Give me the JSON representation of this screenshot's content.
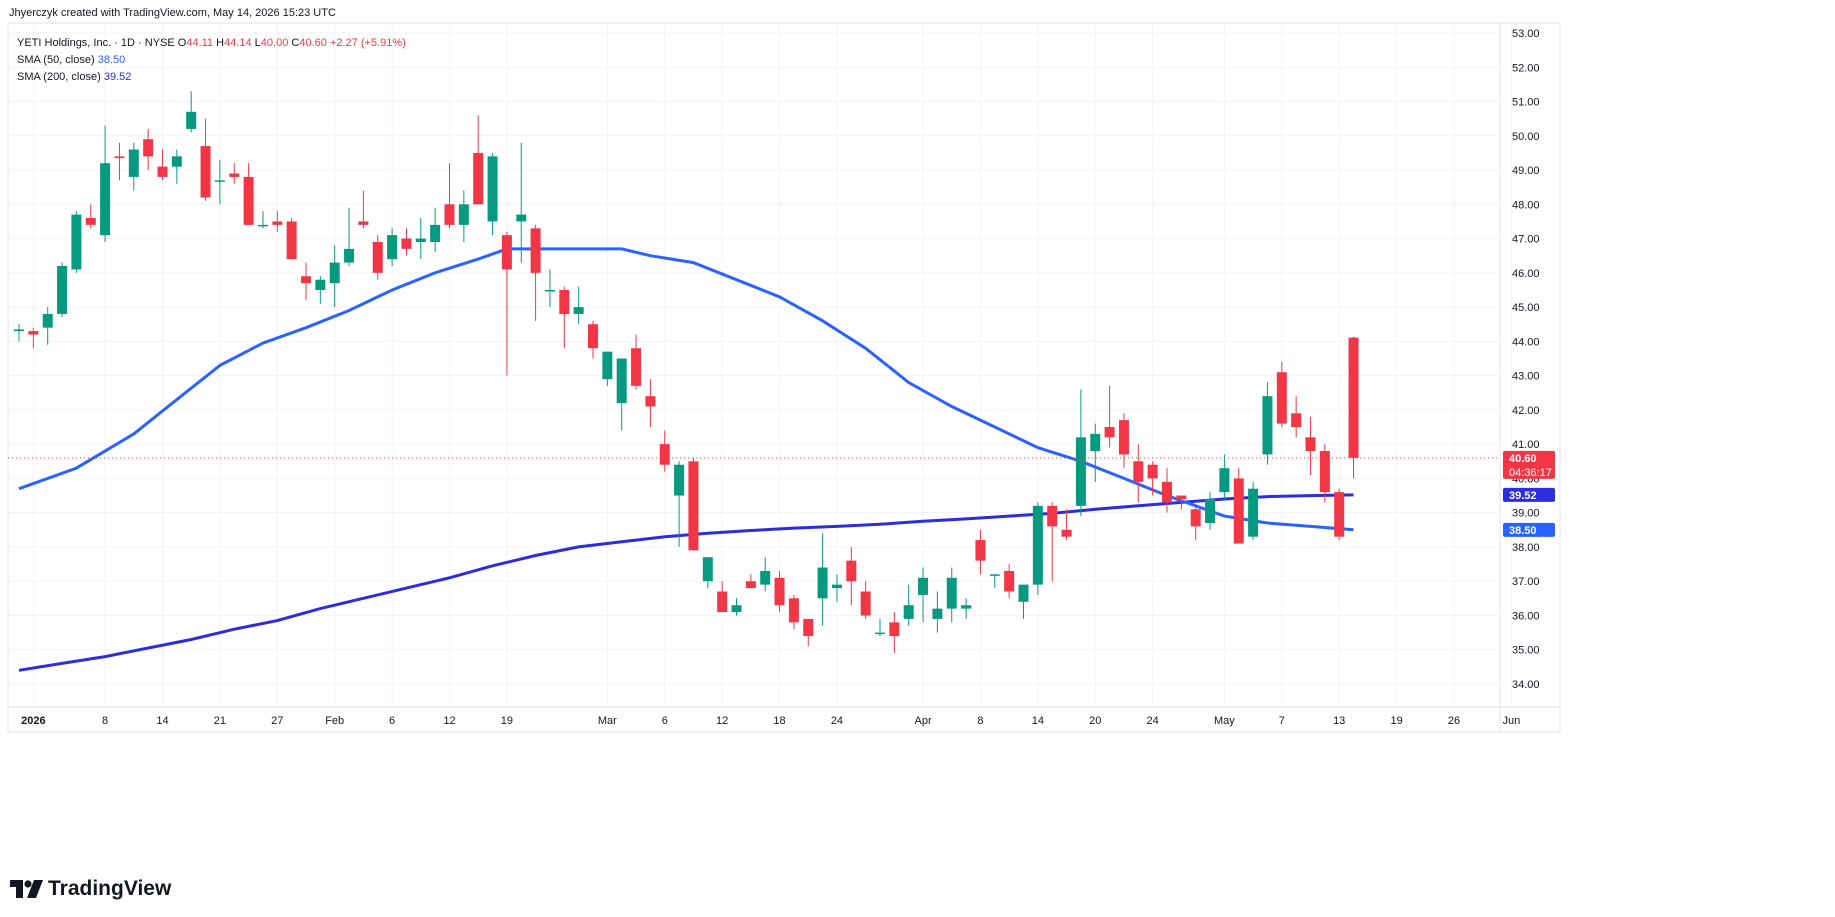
{
  "header": {
    "credit": "Jhyerczyk created with TradingView.com, May 14, 2026 15:23 UTC"
  },
  "legend": {
    "symbol": "YETI Holdings, Inc. · 1D · NYSE",
    "open_label": "O",
    "open": "44.11",
    "high_label": "H",
    "high": "44.14",
    "low_label": "L",
    "low": "40.00",
    "close_label": "C",
    "close": "40.60",
    "change": "+2.27 (+5.91%)",
    "sma50_label": "SMA (50, close)",
    "sma50_value": "38.50",
    "sma200_label": "SMA (200, close)",
    "sma200_value": "39.52"
  },
  "footer": {
    "brand": "TradingView"
  },
  "colors": {
    "up": "#089981",
    "down": "#f23645",
    "sma50": "#2962ff",
    "sma200": "#2c2ce0",
    "grid": "#f0f3fa",
    "axis_text": "#131722"
  },
  "chart_data": {
    "type": "candlestick",
    "symbol": "YETI",
    "exchange": "NYSE",
    "interval": "1D",
    "ylim": [
      33.5,
      53.3
    ],
    "yticks": [
      "53.00",
      "52.00",
      "51.00",
      "50.00",
      "49.00",
      "48.00",
      "47.00",
      "46.00",
      "45.00",
      "44.00",
      "43.00",
      "42.00",
      "41.00",
      "40.00",
      "39.00",
      "38.00",
      "37.00",
      "36.00",
      "35.00",
      "34.00"
    ],
    "x_ticks": [
      {
        "label": "2026",
        "i": 1
      },
      {
        "label": "8",
        "i": 6
      },
      {
        "label": "14",
        "i": 10
      },
      {
        "label": "21",
        "i": 14
      },
      {
        "label": "27",
        "i": 18
      },
      {
        "label": "Feb",
        "i": 22
      },
      {
        "label": "6",
        "i": 26
      },
      {
        "label": "12",
        "i": 30
      },
      {
        "label": "19",
        "i": 34
      },
      {
        "label": "Mar",
        "i": 41
      },
      {
        "label": "6",
        "i": 45
      },
      {
        "label": "12",
        "i": 49
      },
      {
        "label": "18",
        "i": 53
      },
      {
        "label": "24",
        "i": 57
      },
      {
        "label": "Apr",
        "i": 63
      },
      {
        "label": "8",
        "i": 67
      },
      {
        "label": "14",
        "i": 71
      },
      {
        "label": "20",
        "i": 75
      },
      {
        "label": "24",
        "i": 79
      },
      {
        "label": "May",
        "i": 84
      },
      {
        "label": "7",
        "i": 88
      },
      {
        "label": "13",
        "i": 92
      },
      {
        "label": "19",
        "i": 96
      },
      {
        "label": "26",
        "i": 100
      },
      {
        "label": "Jun",
        "i": 104
      }
    ],
    "candles": [
      {
        "o": 44.3,
        "h": 44.5,
        "l": 44.0,
        "c": 44.35
      },
      {
        "o": 44.3,
        "h": 44.4,
        "l": 43.8,
        "c": 44.2
      },
      {
        "o": 44.4,
        "h": 45.0,
        "l": 43.9,
        "c": 44.8
      },
      {
        "o": 44.8,
        "h": 46.3,
        "l": 44.7,
        "c": 46.2
      },
      {
        "o": 46.1,
        "h": 47.8,
        "l": 46.0,
        "c": 47.7
      },
      {
        "o": 47.6,
        "h": 48.0,
        "l": 47.3,
        "c": 47.4
      },
      {
        "o": 47.1,
        "h": 50.3,
        "l": 46.9,
        "c": 49.2
      },
      {
        "o": 49.4,
        "h": 49.8,
        "l": 48.7,
        "c": 49.35
      },
      {
        "o": 48.8,
        "h": 49.8,
        "l": 48.4,
        "c": 49.6
      },
      {
        "o": 49.9,
        "h": 50.2,
        "l": 49.0,
        "c": 49.4
      },
      {
        "o": 49.1,
        "h": 49.6,
        "l": 48.7,
        "c": 48.8
      },
      {
        "o": 49.1,
        "h": 49.6,
        "l": 48.6,
        "c": 49.4
      },
      {
        "o": 50.2,
        "h": 51.3,
        "l": 50.1,
        "c": 50.7
      },
      {
        "o": 49.7,
        "h": 50.5,
        "l": 48.1,
        "c": 48.2
      },
      {
        "o": 48.7,
        "h": 49.3,
        "l": 48.0,
        "c": 48.7
      },
      {
        "o": 48.9,
        "h": 49.2,
        "l": 48.6,
        "c": 48.8
      },
      {
        "o": 48.8,
        "h": 49.2,
        "l": 47.4,
        "c": 47.4
      },
      {
        "o": 47.4,
        "h": 47.8,
        "l": 47.3,
        "c": 47.4
      },
      {
        "o": 47.5,
        "h": 47.8,
        "l": 47.2,
        "c": 47.4
      },
      {
        "o": 47.5,
        "h": 47.6,
        "l": 46.4,
        "c": 46.4
      },
      {
        "o": 45.9,
        "h": 46.3,
        "l": 45.2,
        "c": 45.7
      },
      {
        "o": 45.5,
        "h": 45.9,
        "l": 45.1,
        "c": 45.8
      },
      {
        "o": 45.7,
        "h": 46.8,
        "l": 45.0,
        "c": 46.3
      },
      {
        "o": 46.3,
        "h": 47.9,
        "l": 46.2,
        "c": 46.7
      },
      {
        "o": 47.5,
        "h": 48.4,
        "l": 47.3,
        "c": 47.4
      },
      {
        "o": 46.9,
        "h": 47.1,
        "l": 45.8,
        "c": 46.0
      },
      {
        "o": 46.4,
        "h": 47.3,
        "l": 46.2,
        "c": 47.1
      },
      {
        "o": 47.0,
        "h": 47.3,
        "l": 46.5,
        "c": 46.7
      },
      {
        "o": 46.9,
        "h": 47.6,
        "l": 46.4,
        "c": 47.0
      },
      {
        "o": 46.9,
        "h": 47.9,
        "l": 46.6,
        "c": 47.4
      },
      {
        "o": 48.0,
        "h": 49.2,
        "l": 47.3,
        "c": 47.4
      },
      {
        "o": 47.4,
        "h": 48.4,
        "l": 46.9,
        "c": 48.0
      },
      {
        "o": 49.5,
        "h": 50.6,
        "l": 48.1,
        "c": 48.0
      },
      {
        "o": 47.5,
        "h": 49.5,
        "l": 47.1,
        "c": 49.4
      },
      {
        "o": 47.1,
        "h": 47.2,
        "l": 43.0,
        "c": 46.1
      },
      {
        "o": 47.5,
        "h": 49.8,
        "l": 46.3,
        "c": 47.7
      },
      {
        "o": 47.3,
        "h": 47.4,
        "l": 44.6,
        "c": 46.0
      },
      {
        "o": 45.5,
        "h": 46.1,
        "l": 45.0,
        "c": 45.5
      },
      {
        "o": 45.5,
        "h": 45.6,
        "l": 43.8,
        "c": 44.8
      },
      {
        "o": 44.8,
        "h": 45.6,
        "l": 44.5,
        "c": 45.0
      },
      {
        "o": 44.5,
        "h": 44.6,
        "l": 43.5,
        "c": 43.8
      },
      {
        "o": 42.9,
        "h": 43.7,
        "l": 42.7,
        "c": 43.7
      },
      {
        "o": 42.2,
        "h": 43.5,
        "l": 41.4,
        "c": 43.5
      },
      {
        "o": 43.8,
        "h": 44.2,
        "l": 42.6,
        "c": 42.7
      },
      {
        "o": 42.4,
        "h": 42.9,
        "l": 41.5,
        "c": 42.1
      },
      {
        "o": 41.0,
        "h": 41.4,
        "l": 40.2,
        "c": 40.4
      },
      {
        "o": 39.5,
        "h": 40.5,
        "l": 38.0,
        "c": 40.4
      },
      {
        "o": 40.5,
        "h": 40.6,
        "l": 37.9,
        "c": 37.9
      },
      {
        "o": 37.0,
        "h": 37.7,
        "l": 36.8,
        "c": 37.7
      },
      {
        "o": 36.7,
        "h": 37.0,
        "l": 36.1,
        "c": 36.1
      },
      {
        "o": 36.1,
        "h": 36.5,
        "l": 36.0,
        "c": 36.3
      },
      {
        "o": 37.0,
        "h": 37.2,
        "l": 36.8,
        "c": 36.8
      },
      {
        "o": 36.9,
        "h": 37.7,
        "l": 36.7,
        "c": 37.3
      },
      {
        "o": 37.1,
        "h": 37.3,
        "l": 36.1,
        "c": 36.3
      },
      {
        "o": 36.5,
        "h": 36.6,
        "l": 35.6,
        "c": 35.8
      },
      {
        "o": 35.9,
        "h": 35.9,
        "l": 35.1,
        "c": 35.4
      },
      {
        "o": 36.5,
        "h": 38.4,
        "l": 35.7,
        "c": 37.4
      },
      {
        "o": 36.8,
        "h": 37.2,
        "l": 36.4,
        "c": 36.9
      },
      {
        "o": 37.6,
        "h": 38.0,
        "l": 36.3,
        "c": 37.0
      },
      {
        "o": 36.7,
        "h": 37.0,
        "l": 35.9,
        "c": 36.0
      },
      {
        "o": 35.5,
        "h": 35.9,
        "l": 35.4,
        "c": 35.5
      },
      {
        "o": 35.8,
        "h": 36.1,
        "l": 34.9,
        "c": 35.4
      },
      {
        "o": 35.9,
        "h": 36.9,
        "l": 35.7,
        "c": 36.3
      },
      {
        "o": 36.6,
        "h": 37.4,
        "l": 35.8,
        "c": 37.1
      },
      {
        "o": 35.9,
        "h": 36.7,
        "l": 35.5,
        "c": 36.2
      },
      {
        "o": 36.2,
        "h": 37.4,
        "l": 35.8,
        "c": 37.1
      },
      {
        "o": 36.2,
        "h": 36.5,
        "l": 35.9,
        "c": 36.3
      },
      {
        "o": 38.2,
        "h": 38.5,
        "l": 37.2,
        "c": 37.6
      },
      {
        "o": 37.2,
        "h": 37.2,
        "l": 36.8,
        "c": 37.2
      },
      {
        "o": 37.3,
        "h": 37.5,
        "l": 36.5,
        "c": 36.7
      },
      {
        "o": 36.4,
        "h": 36.9,
        "l": 35.9,
        "c": 36.9
      },
      {
        "o": 36.9,
        "h": 39.3,
        "l": 36.6,
        "c": 39.2
      },
      {
        "o": 39.2,
        "h": 39.3,
        "l": 37.0,
        "c": 38.6
      },
      {
        "o": 38.5,
        "h": 39.1,
        "l": 38.2,
        "c": 38.3
      },
      {
        "o": 39.2,
        "h": 42.6,
        "l": 38.9,
        "c": 41.2
      },
      {
        "o": 40.8,
        "h": 41.6,
        "l": 39.9,
        "c": 41.3
      },
      {
        "o": 41.5,
        "h": 42.7,
        "l": 40.9,
        "c": 41.2
      },
      {
        "o": 41.7,
        "h": 41.9,
        "l": 40.3,
        "c": 40.7
      },
      {
        "o": 40.5,
        "h": 41.0,
        "l": 39.3,
        "c": 39.9
      },
      {
        "o": 40.4,
        "h": 40.5,
        "l": 39.5,
        "c": 40.0
      },
      {
        "o": 39.9,
        "h": 40.3,
        "l": 39.0,
        "c": 39.3
      },
      {
        "o": 39.5,
        "h": 39.5,
        "l": 39.1,
        "c": 39.4
      },
      {
        "o": 39.1,
        "h": 39.2,
        "l": 38.2,
        "c": 38.6
      },
      {
        "o": 38.7,
        "h": 39.6,
        "l": 38.5,
        "c": 39.4
      },
      {
        "o": 39.6,
        "h": 40.7,
        "l": 39.4,
        "c": 40.3
      },
      {
        "o": 40.0,
        "h": 40.3,
        "l": 38.1,
        "c": 38.1
      },
      {
        "o": 38.3,
        "h": 39.9,
        "l": 38.2,
        "c": 39.7
      },
      {
        "o": 40.7,
        "h": 42.8,
        "l": 40.4,
        "c": 42.4
      },
      {
        "o": 43.1,
        "h": 43.4,
        "l": 41.5,
        "c": 41.6
      },
      {
        "o": 41.9,
        "h": 42.4,
        "l": 41.2,
        "c": 41.5
      },
      {
        "o": 41.2,
        "h": 41.8,
        "l": 40.1,
        "c": 40.8
      },
      {
        "o": 40.8,
        "h": 41.0,
        "l": 39.3,
        "c": 39.6
      },
      {
        "o": 39.6,
        "h": 39.7,
        "l": 38.2,
        "c": 38.3
      },
      {
        "o": 44.11,
        "h": 44.14,
        "l": 40.0,
        "c": 40.6
      }
    ],
    "sma50": [
      [
        0,
        39.7
      ],
      [
        4,
        40.3
      ],
      [
        8,
        41.3
      ],
      [
        11,
        42.3
      ],
      [
        14,
        43.3
      ],
      [
        17,
        43.95
      ],
      [
        20,
        44.4
      ],
      [
        23,
        44.9
      ],
      [
        26,
        45.5
      ],
      [
        29,
        46.0
      ],
      [
        32,
        46.4
      ],
      [
        34,
        46.7
      ],
      [
        37,
        46.7
      ],
      [
        40,
        46.7
      ],
      [
        42,
        46.7
      ],
      [
        44,
        46.5
      ],
      [
        47,
        46.3
      ],
      [
        50,
        45.8
      ],
      [
        53,
        45.3
      ],
      [
        56,
        44.6
      ],
      [
        59,
        43.8
      ],
      [
        62,
        42.8
      ],
      [
        65,
        42.1
      ],
      [
        68,
        41.5
      ],
      [
        71,
        40.9
      ],
      [
        74,
        40.5
      ],
      [
        77,
        40.0
      ],
      [
        80,
        39.5
      ],
      [
        84,
        38.9
      ],
      [
        87,
        38.7
      ],
      [
        90,
        38.6
      ],
      [
        93,
        38.5
      ]
    ],
    "sma200": [
      [
        0,
        34.4
      ],
      [
        3,
        34.6
      ],
      [
        6,
        34.8
      ],
      [
        9,
        35.05
      ],
      [
        12,
        35.3
      ],
      [
        15,
        35.6
      ],
      [
        18,
        35.85
      ],
      [
        21,
        36.2
      ],
      [
        24,
        36.5
      ],
      [
        27,
        36.8
      ],
      [
        30,
        37.1
      ],
      [
        33,
        37.45
      ],
      [
        36,
        37.75
      ],
      [
        39,
        38.0
      ],
      [
        42,
        38.15
      ],
      [
        45,
        38.3
      ],
      [
        48,
        38.4
      ],
      [
        51,
        38.48
      ],
      [
        54,
        38.55
      ],
      [
        57,
        38.6
      ],
      [
        60,
        38.66
      ],
      [
        63,
        38.75
      ],
      [
        66,
        38.82
      ],
      [
        69,
        38.9
      ],
      [
        72,
        38.98
      ],
      [
        75,
        39.1
      ],
      [
        78,
        39.2
      ],
      [
        81,
        39.3
      ],
      [
        84,
        39.4
      ],
      [
        87,
        39.47
      ],
      [
        90,
        39.5
      ],
      [
        93,
        39.52
      ]
    ],
    "last_price": {
      "value": "40.60",
      "countdown": "04:36:17"
    },
    "sma200_tag": "39.52",
    "sma50_tag": "38.50"
  }
}
